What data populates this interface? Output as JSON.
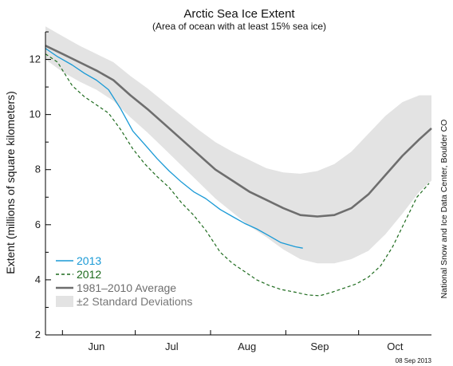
{
  "chart_data": {
    "type": "line",
    "title": "Arctic Sea Ice Extent",
    "subtitle": "(Area of ocean with at least 15% sea ice)",
    "ylabel": "Extent (millions of square kilometers)",
    "xlabel": "",
    "ylim": [
      2,
      13
    ],
    "yticks": [
      2,
      4,
      6,
      8,
      10,
      12
    ],
    "x_domain": [
      "2013-05-25",
      "2013-10-31"
    ],
    "xtick_labels": [
      {
        "label": "Jun",
        "date": "2013-06-15"
      },
      {
        "label": "Jul",
        "date": "2013-07-16"
      },
      {
        "label": "Aug",
        "date": "2013-08-16"
      },
      {
        "label": "Sep",
        "date": "2013-09-15"
      },
      {
        "label": "Oct",
        "date": "2013-10-16"
      }
    ],
    "month_boundaries": [
      "2013-06-01",
      "2013-07-01",
      "2013-08-01",
      "2013-09-01",
      "2013-10-01"
    ],
    "grid": false,
    "legend_position": "bottom-left",
    "series": [
      {
        "name": "2013",
        "color": "#1a9ad6",
        "style": "solid",
        "points": [
          {
            "x": "2013-05-25",
            "y": 12.4
          },
          {
            "x": "2013-05-30",
            "y": 12.1
          },
          {
            "x": "2013-06-05",
            "y": 11.8
          },
          {
            "x": "2013-06-10",
            "y": 11.5
          },
          {
            "x": "2013-06-15",
            "y": 11.25
          },
          {
            "x": "2013-06-20",
            "y": 10.9
          },
          {
            "x": "2013-06-25",
            "y": 10.2
          },
          {
            "x": "2013-06-30",
            "y": 9.4
          },
          {
            "x": "2013-07-05",
            "y": 8.9
          },
          {
            "x": "2013-07-10",
            "y": 8.4
          },
          {
            "x": "2013-07-15",
            "y": 7.95
          },
          {
            "x": "2013-07-20",
            "y": 7.55
          },
          {
            "x": "2013-07-25",
            "y": 7.2
          },
          {
            "x": "2013-07-30",
            "y": 6.95
          },
          {
            "x": "2013-08-05",
            "y": 6.55
          },
          {
            "x": "2013-08-10",
            "y": 6.3
          },
          {
            "x": "2013-08-15",
            "y": 6.05
          },
          {
            "x": "2013-08-20",
            "y": 5.85
          },
          {
            "x": "2013-08-25",
            "y": 5.6
          },
          {
            "x": "2013-08-30",
            "y": 5.35
          },
          {
            "x": "2013-09-05",
            "y": 5.2
          },
          {
            "x": "2013-09-08",
            "y": 5.15
          }
        ]
      },
      {
        "name": "2012",
        "color": "#1e6b1e",
        "style": "dashed",
        "points": [
          {
            "x": "2013-05-25",
            "y": 12.2
          },
          {
            "x": "2013-05-30",
            "y": 11.9
          },
          {
            "x": "2013-06-05",
            "y": 11.05
          },
          {
            "x": "2013-06-10",
            "y": 10.65
          },
          {
            "x": "2013-06-15",
            "y": 10.35
          },
          {
            "x": "2013-06-20",
            "y": 10.05
          },
          {
            "x": "2013-06-25",
            "y": 9.45
          },
          {
            "x": "2013-06-30",
            "y": 8.75
          },
          {
            "x": "2013-07-05",
            "y": 8.2
          },
          {
            "x": "2013-07-10",
            "y": 7.75
          },
          {
            "x": "2013-07-15",
            "y": 7.35
          },
          {
            "x": "2013-07-20",
            "y": 6.8
          },
          {
            "x": "2013-07-25",
            "y": 6.35
          },
          {
            "x": "2013-07-30",
            "y": 5.8
          },
          {
            "x": "2013-08-05",
            "y": 5.0
          },
          {
            "x": "2013-08-10",
            "y": 4.6
          },
          {
            "x": "2013-08-15",
            "y": 4.3
          },
          {
            "x": "2013-08-20",
            "y": 4.0
          },
          {
            "x": "2013-08-25",
            "y": 3.8
          },
          {
            "x": "2013-08-30",
            "y": 3.65
          },
          {
            "x": "2013-09-05",
            "y": 3.55
          },
          {
            "x": "2013-09-10",
            "y": 3.45
          },
          {
            "x": "2013-09-15",
            "y": 3.42
          },
          {
            "x": "2013-09-20",
            "y": 3.55
          },
          {
            "x": "2013-09-25",
            "y": 3.7
          },
          {
            "x": "2013-09-30",
            "y": 3.85
          },
          {
            "x": "2013-10-05",
            "y": 4.1
          },
          {
            "x": "2013-10-10",
            "y": 4.5
          },
          {
            "x": "2013-10-15",
            "y": 5.2
          },
          {
            "x": "2013-10-20",
            "y": 6.1
          },
          {
            "x": "2013-10-25",
            "y": 7.0
          },
          {
            "x": "2013-10-30",
            "y": 7.5
          }
        ]
      },
      {
        "name": "1981–2010 Average",
        "color": "#6e6e6e",
        "style": "solid",
        "points": [
          {
            "x": "2013-05-25",
            "y": 12.5
          },
          {
            "x": "2013-06-01",
            "y": 12.2
          },
          {
            "x": "2013-06-08",
            "y": 11.9
          },
          {
            "x": "2013-06-15",
            "y": 11.6
          },
          {
            "x": "2013-06-22",
            "y": 11.25
          },
          {
            "x": "2013-06-29",
            "y": 10.7
          },
          {
            "x": "2013-07-06",
            "y": 10.2
          },
          {
            "x": "2013-07-13",
            "y": 9.65
          },
          {
            "x": "2013-07-20",
            "y": 9.1
          },
          {
            "x": "2013-07-27",
            "y": 8.55
          },
          {
            "x": "2013-08-03",
            "y": 8.0
          },
          {
            "x": "2013-08-10",
            "y": 7.6
          },
          {
            "x": "2013-08-17",
            "y": 7.2
          },
          {
            "x": "2013-08-24",
            "y": 6.9
          },
          {
            "x": "2013-08-31",
            "y": 6.6
          },
          {
            "x": "2013-09-07",
            "y": 6.35
          },
          {
            "x": "2013-09-14",
            "y": 6.3
          },
          {
            "x": "2013-09-21",
            "y": 6.35
          },
          {
            "x": "2013-09-28",
            "y": 6.6
          },
          {
            "x": "2013-10-05",
            "y": 7.1
          },
          {
            "x": "2013-10-12",
            "y": 7.8
          },
          {
            "x": "2013-10-19",
            "y": 8.5
          },
          {
            "x": "2013-10-26",
            "y": 9.1
          },
          {
            "x": "2013-10-31",
            "y": 9.5
          }
        ]
      }
    ],
    "band": {
      "name": "±2 Standard Deviations",
      "color": "#e3e3e3",
      "points": [
        {
          "x": "2013-05-25",
          "upper": 13.2,
          "lower": 12.0
        },
        {
          "x": "2013-06-01",
          "upper": 12.85,
          "lower": 11.55
        },
        {
          "x": "2013-06-08",
          "upper": 12.5,
          "lower": 11.2
        },
        {
          "x": "2013-06-15",
          "upper": 12.2,
          "lower": 10.9
        },
        {
          "x": "2013-06-22",
          "upper": 11.9,
          "lower": 10.5
        },
        {
          "x": "2013-06-29",
          "upper": 11.4,
          "lower": 9.9
        },
        {
          "x": "2013-07-06",
          "upper": 10.95,
          "lower": 9.35
        },
        {
          "x": "2013-07-13",
          "upper": 10.45,
          "lower": 8.75
        },
        {
          "x": "2013-07-20",
          "upper": 9.95,
          "lower": 8.15
        },
        {
          "x": "2013-07-27",
          "upper": 9.45,
          "lower": 7.55
        },
        {
          "x": "2013-08-03",
          "upper": 9.0,
          "lower": 6.95
        },
        {
          "x": "2013-08-10",
          "upper": 8.65,
          "lower": 6.45
        },
        {
          "x": "2013-08-17",
          "upper": 8.35,
          "lower": 5.95
        },
        {
          "x": "2013-08-24",
          "upper": 8.05,
          "lower": 5.55
        },
        {
          "x": "2013-08-31",
          "upper": 7.9,
          "lower": 5.1
        },
        {
          "x": "2013-09-07",
          "upper": 7.85,
          "lower": 4.75
        },
        {
          "x": "2013-09-14",
          "upper": 7.95,
          "lower": 4.6
        },
        {
          "x": "2013-09-21",
          "upper": 8.2,
          "lower": 4.6
        },
        {
          "x": "2013-09-28",
          "upper": 8.65,
          "lower": 4.75
        },
        {
          "x": "2013-10-05",
          "upper": 9.3,
          "lower": 5.05
        },
        {
          "x": "2013-10-12",
          "upper": 9.95,
          "lower": 5.65
        },
        {
          "x": "2013-10-19",
          "upper": 10.45,
          "lower": 6.4
        },
        {
          "x": "2013-10-26",
          "upper": 10.7,
          "lower": 7.2
        },
        {
          "x": "2013-10-31",
          "upper": 10.7,
          "lower": 7.6
        }
      ]
    },
    "legend": [
      {
        "label": "2013",
        "kind": "line",
        "series": 0
      },
      {
        "label": "2012",
        "kind": "line",
        "series": 1
      },
      {
        "label": "1981–2010 Average",
        "kind": "line",
        "series": 2
      },
      {
        "label": "±2 Standard Deviations",
        "kind": "band"
      }
    ],
    "credit": "National Snow and Ice Data Center, Boulder CO",
    "date_stamp": "08 Sep 2013"
  }
}
